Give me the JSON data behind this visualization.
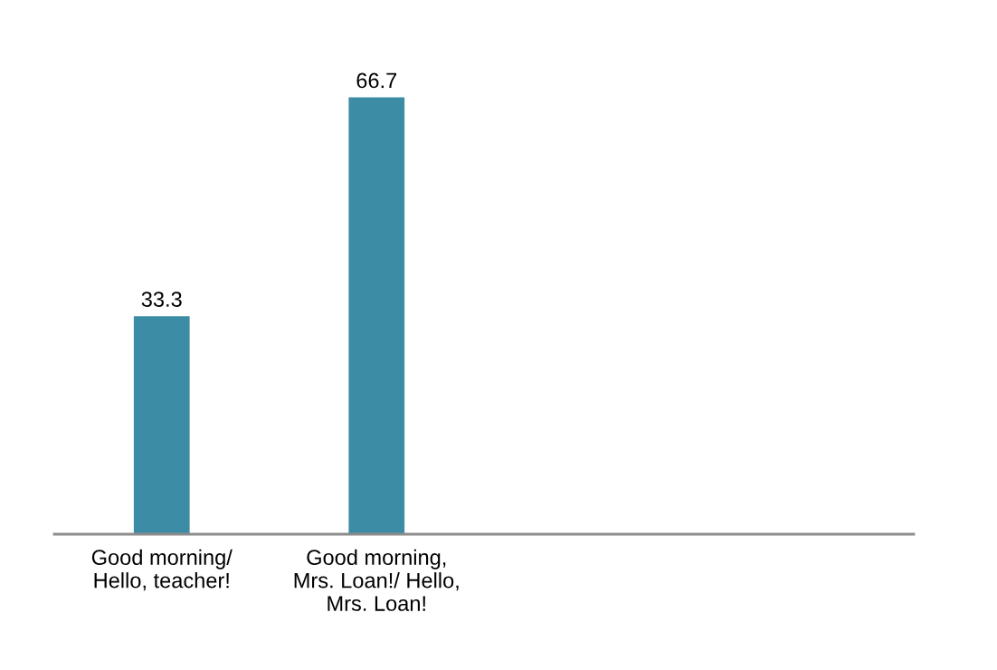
{
  "chart_data": {
    "type": "bar",
    "categories": [
      "Good morning/\nHello, teacher!",
      "Good morning,\nMrs. Loan!/ Hello,\nMrs. Loan!",
      null,
      null
    ],
    "values": [
      33.3,
      66.7,
      null,
      null
    ],
    "color": "#3d8ca5",
    "data_labels": true,
    "grid": false,
    "legend": false
  }
}
